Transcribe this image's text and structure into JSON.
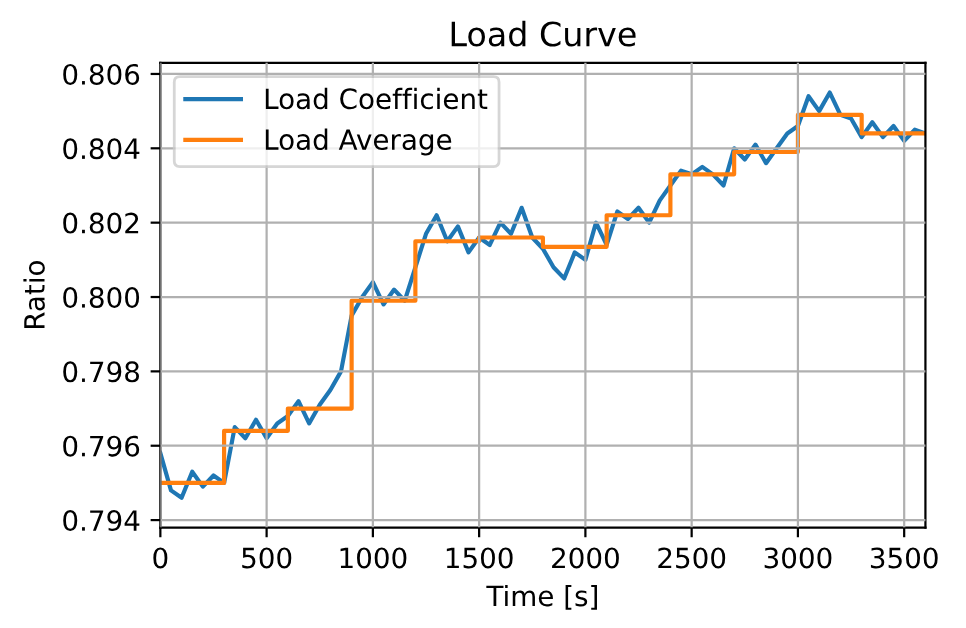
{
  "chart_data": {
    "type": "line",
    "title": "Load Curve",
    "xlabel": "Time [s]",
    "ylabel": "Ratio",
    "series": [
      {
        "name": "Load Coefficient",
        "color": "#1f77b4",
        "x": [
          0,
          50,
          100,
          150,
          200,
          250,
          300,
          350,
          400,
          450,
          500,
          550,
          600,
          650,
          700,
          750,
          800,
          850,
          900,
          950,
          1000,
          1050,
          1100,
          1150,
          1200,
          1250,
          1300,
          1350,
          1400,
          1450,
          1500,
          1550,
          1600,
          1650,
          1700,
          1750,
          1800,
          1850,
          1900,
          1950,
          2000,
          2050,
          2100,
          2150,
          2200,
          2250,
          2300,
          2350,
          2400,
          2450,
          2500,
          2550,
          2600,
          2650,
          2700,
          2750,
          2800,
          2850,
          2900,
          2950,
          3000,
          3050,
          3100,
          3150,
          3200,
          3250,
          3300,
          3350,
          3400,
          3450,
          3500,
          3550,
          3600
        ],
        "values": [
          0.7958,
          0.7948,
          0.7946,
          0.7953,
          0.7949,
          0.7952,
          0.795,
          0.7965,
          0.7962,
          0.7967,
          0.7962,
          0.7966,
          0.7968,
          0.7972,
          0.7966,
          0.7971,
          0.7975,
          0.798,
          0.7995,
          0.8,
          0.8004,
          0.7998,
          0.8002,
          0.7999,
          0.8008,
          0.8017,
          0.8022,
          0.8015,
          0.8019,
          0.8012,
          0.8016,
          0.8014,
          0.802,
          0.8017,
          0.8024,
          0.8016,
          0.8013,
          0.8008,
          0.8005,
          0.8012,
          0.801,
          0.802,
          0.8014,
          0.8023,
          0.8021,
          0.8024,
          0.802,
          0.8026,
          0.803,
          0.8034,
          0.8033,
          0.8035,
          0.8033,
          0.803,
          0.804,
          0.8037,
          0.8041,
          0.8036,
          0.804,
          0.8044,
          0.8046,
          0.8054,
          0.805,
          0.8055,
          0.8049,
          0.8048,
          0.8043,
          0.8047,
          0.8043,
          0.8046,
          0.8042,
          0.8045,
          0.8044
        ]
      },
      {
        "name": "Load Average",
        "color": "#ff7f0e",
        "type": "step",
        "x": [
          0,
          300,
          600,
          900,
          1200,
          1500,
          1800,
          2100,
          2400,
          2700,
          3000,
          3300,
          3600
        ],
        "values": [
          0.795,
          0.7964,
          0.797,
          0.7999,
          0.8015,
          0.8016,
          0.80135,
          0.8022,
          0.8033,
          0.8039,
          0.8049,
          0.8044,
          0.8044
        ]
      }
    ],
    "xlim": [
      0,
      3600
    ],
    "ylim": [
      0.7938,
      0.8063
    ],
    "xticks": [
      0,
      500,
      1000,
      1500,
      2000,
      2500,
      3000,
      3500
    ],
    "yticks": [
      {
        "value": 0.794,
        "label": "0.794"
      },
      {
        "value": 0.796,
        "label": "0.796"
      },
      {
        "value": 0.798,
        "label": "0.798"
      },
      {
        "value": 0.8,
        "label": "0.800"
      },
      {
        "value": 0.802,
        "label": "0.802"
      },
      {
        "value": 0.804,
        "label": "0.804"
      },
      {
        "value": 0.806,
        "label": "0.806"
      }
    ],
    "grid": true,
    "legend": "top left"
  }
}
